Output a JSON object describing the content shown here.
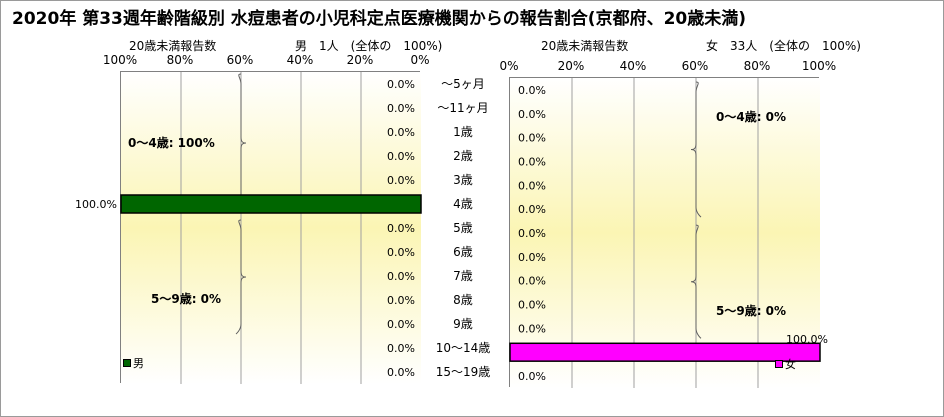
{
  "title": "2020年 第33週年齢階級別 水痘患者の小児科定点医療機関からの報告割合(京都府、20歳未満)",
  "colors": {
    "male": "#006600",
    "female": "#ff00ff",
    "grid": "#a0a0a0",
    "gradient_top": "#ffffff",
    "gradient_mid": "#fbf5b4"
  },
  "age_labels": [
    "～5ヶ月",
    "～11ヶ月",
    "1歳",
    "2歳",
    "3歳",
    "4歳",
    "5歳",
    "6歳",
    "7歳",
    "8歳",
    "9歳",
    "10～14歳",
    "15～19歳"
  ],
  "chart_data": [
    {
      "type": "bar",
      "orientation": "horizontal",
      "header_left": "20歳未満報告数",
      "header_right": "男　1人　(全体の　100%)",
      "x_ticks": [
        "100%",
        "80%",
        "60%",
        "40%",
        "20%",
        "0%"
      ],
      "xlim": [
        100,
        0
      ],
      "categories": [
        "～5ヶ月",
        "～11ヶ月",
        "1歳",
        "2歳",
        "3歳",
        "4歳",
        "5歳",
        "6歳",
        "7歳",
        "8歳",
        "9歳",
        "10～14歳",
        "15～19歳"
      ],
      "series": [
        {
          "name": "男",
          "values": [
            0,
            0,
            0,
            0,
            0,
            100,
            0,
            0,
            0,
            0,
            0,
            0,
            0
          ]
        }
      ],
      "data_labels": [
        "0.0%",
        "0.0%",
        "0.0%",
        "0.0%",
        "0.0%",
        "100.0%",
        "0.0%",
        "0.0%",
        "0.0%",
        "0.0%",
        "0.0%",
        "0.0%",
        "0.0%"
      ],
      "group_labels": [
        "0～4歳: 100%",
        "5～9歳: 0%"
      ],
      "legend": "男",
      "grid": true
    },
    {
      "type": "bar",
      "orientation": "horizontal",
      "header_left": "20歳未満報告数",
      "header_right": "女　33人　(全体の　100%)",
      "x_ticks": [
        "0%",
        "20%",
        "40%",
        "60%",
        "80%",
        "100%"
      ],
      "xlim": [
        0,
        100
      ],
      "categories": [
        "～5ヶ月",
        "～11ヶ月",
        "1歳",
        "2歳",
        "3歳",
        "4歳",
        "5歳",
        "6歳",
        "7歳",
        "8歳",
        "9歳",
        "10～14歳",
        "15～19歳"
      ],
      "series": [
        {
          "name": "女",
          "values": [
            0,
            0,
            0,
            0,
            0,
            0,
            0,
            0,
            0,
            0,
            0,
            100,
            0
          ]
        }
      ],
      "data_labels": [
        "0.0%",
        "0.0%",
        "0.0%",
        "0.0%",
        "0.0%",
        "0.0%",
        "0.0%",
        "0.0%",
        "0.0%",
        "0.0%",
        "0.0%",
        "100.0%",
        "0.0%"
      ],
      "group_labels": [
        "0～4歳: 0%",
        "5～9歳: 0%"
      ],
      "legend": "女",
      "grid": true
    }
  ]
}
